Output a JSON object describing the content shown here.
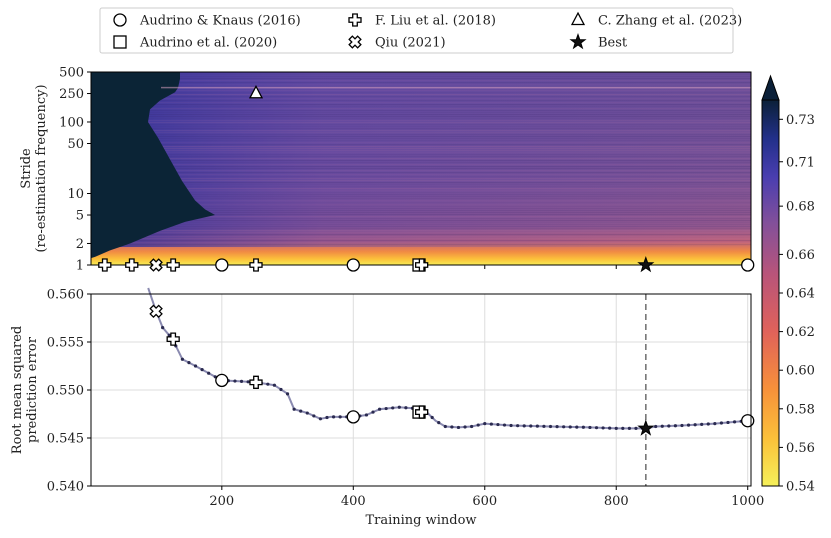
{
  "legend": {
    "placement": "top-center",
    "entries": [
      {
        "label": "Audrino & Knaus (2016)",
        "marker": "circle"
      },
      {
        "label": "Audrino et al. (2020)",
        "marker": "square"
      },
      {
        "label": "F. Liu et al. (2018)",
        "marker": "plus"
      },
      {
        "label": "Qiu (2021)",
        "marker": "x"
      },
      {
        "label": "C. Zhang et al. (2023)",
        "marker": "triangle"
      },
      {
        "label": "Best",
        "marker": "star"
      }
    ]
  },
  "chart_data": [
    {
      "type": "heatmap",
      "panel": "top",
      "ylabel_lines": [
        "Stride",
        "(re-estimation frequency)"
      ],
      "yscale": "log",
      "ylim": [
        1,
        500
      ],
      "xlim": [
        1,
        1005
      ],
      "yticks": [
        "1",
        "2",
        "5",
        "10",
        "50",
        "100",
        "250",
        "500"
      ],
      "colormap": "plasma_r-like (yellow → orange → magenta → blue → dark navy)",
      "colorbar": {
        "range": [
          0.54,
          0.74
        ],
        "ticks": [
          "0.54",
          "0.56",
          "0.58",
          "0.60",
          "0.62",
          "0.64",
          "0.66",
          "0.68",
          "0.71",
          "0.73"
        ],
        "extend": "max"
      },
      "markers": [
        {
          "series": "Audrino & Knaus (2016)",
          "marker": "circle",
          "x": 200,
          "y": 1
        },
        {
          "series": "Audrino & Knaus (2016)",
          "marker": "circle",
          "x": 400,
          "y": 1
        },
        {
          "series": "Audrino & Knaus (2016)",
          "marker": "circle",
          "x": 1000,
          "y": 1
        },
        {
          "series": "Audrino et al. (2020)",
          "marker": "square",
          "x": 500,
          "y": 1
        },
        {
          "series": "F. Liu et al. (2018)",
          "marker": "plus",
          "x": 22,
          "y": 1
        },
        {
          "series": "F. Liu et al. (2018)",
          "marker": "plus",
          "x": 63,
          "y": 1
        },
        {
          "series": "F. Liu et al. (2018)",
          "marker": "plus",
          "x": 126,
          "y": 1
        },
        {
          "series": "F. Liu et al. (2018)",
          "marker": "plus",
          "x": 252,
          "y": 1
        },
        {
          "series": "F. Liu et al. (2018)",
          "marker": "plus",
          "x": 504,
          "y": 1
        },
        {
          "series": "Qiu (2021)",
          "marker": "x",
          "x": 100,
          "y": 1
        },
        {
          "series": "C. Zhang et al. (2023)",
          "marker": "triangle",
          "x": 252,
          "y": 252
        },
        {
          "series": "Best",
          "marker": "star",
          "x": 845,
          "y": 1
        }
      ]
    },
    {
      "type": "line",
      "panel": "bottom",
      "xlabel": "Training window",
      "ylabel_lines": [
        "Root mean squared",
        "prediction error"
      ],
      "xlim": [
        1,
        1005
      ],
      "ylim": [
        0.54,
        0.56
      ],
      "xticks": [
        "200",
        "400",
        "600",
        "800",
        "1000"
      ],
      "yticks": [
        "0.540",
        "0.545",
        "0.550",
        "0.555",
        "0.560"
      ],
      "grid": true,
      "best_x_line": 845,
      "series": [
        {
          "name": "",
          "x": [
            88,
            100,
            110,
            125,
            140,
            160,
            200,
            230,
            252,
            280,
            300,
            310,
            330,
            350,
            365,
            400,
            420,
            440,
            470,
            490,
            500,
            510,
            525,
            540,
            560,
            580,
            600,
            640,
            700,
            760,
            800,
            845,
            860,
            900,
            950,
            1000
          ],
          "y": [
            0.5622,
            0.5582,
            0.5565,
            0.5553,
            0.5532,
            0.5525,
            0.551,
            0.5509,
            0.5508,
            0.5505,
            0.5496,
            0.548,
            0.5476,
            0.547,
            0.5472,
            0.5472,
            0.5474,
            0.548,
            0.5482,
            0.5481,
            0.5477,
            0.5478,
            0.5468,
            0.5462,
            0.5461,
            0.5462,
            0.5465,
            0.5463,
            0.5462,
            0.5461,
            0.546,
            0.546,
            0.5462,
            0.5463,
            0.5465,
            0.5468
          ]
        }
      ],
      "markers": [
        {
          "series": "Qiu (2021)",
          "marker": "x",
          "x": 100,
          "y": 0.5582
        },
        {
          "series": "F. Liu et al. (2018)",
          "marker": "plus",
          "x": 126,
          "y": 0.5553
        },
        {
          "series": "Audrino & Knaus (2016)",
          "marker": "circle",
          "x": 200,
          "y": 0.551
        },
        {
          "series": "F. Liu et al. (2018)",
          "marker": "plus",
          "x": 252,
          "y": 0.5508
        },
        {
          "series": "Audrino & Knaus (2016)",
          "marker": "circle",
          "x": 400,
          "y": 0.5472
        },
        {
          "series": "Audrino et al. (2020)",
          "marker": "square",
          "x": 500,
          "y": 0.5477
        },
        {
          "series": "F. Liu et al. (2018)",
          "marker": "plus",
          "x": 504,
          "y": 0.5477
        },
        {
          "series": "Best",
          "marker": "star",
          "x": 845,
          "y": 0.546
        },
        {
          "series": "Audrino & Knaus (2016)",
          "marker": "circle",
          "x": 1000,
          "y": 0.5468
        }
      ]
    }
  ]
}
